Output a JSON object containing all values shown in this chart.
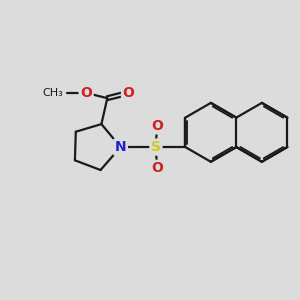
{
  "background_color": "#dcdcdc",
  "bond_color": "#1a1a1a",
  "bond_width": 1.6,
  "N_color": "#2222cc",
  "O_color": "#cc2222",
  "S_color": "#cccc22",
  "fig_size": [
    3.0,
    3.0
  ],
  "dpi": 100,
  "xlim": [
    0,
    10
  ],
  "ylim": [
    0,
    10
  ]
}
